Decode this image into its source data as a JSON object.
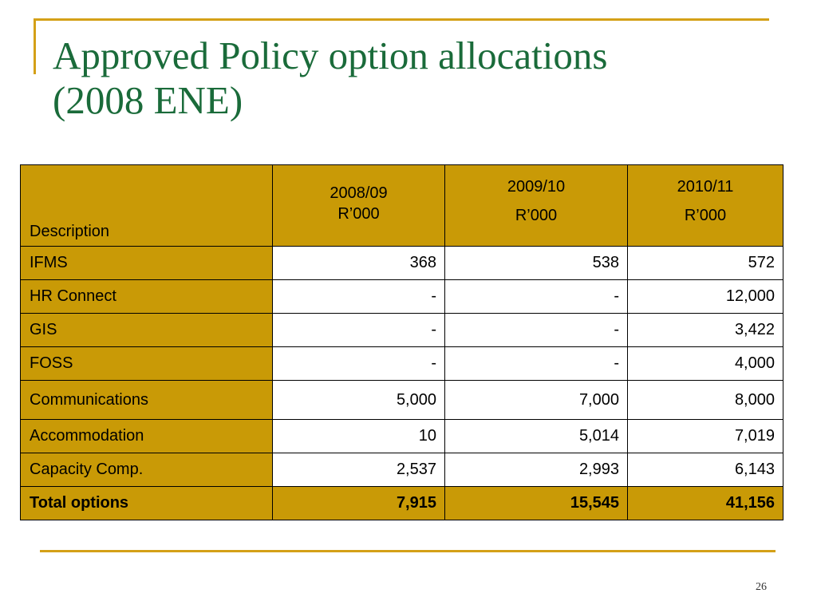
{
  "slide": {
    "title_line1": "Approved Policy option allocations",
    "title_line2": "(2008 ENE)",
    "page_number": "26"
  },
  "table": {
    "header": {
      "description": "Description",
      "col1_year": "2008/09",
      "col1_unit": "R’000",
      "col2_year": "2009/10",
      "col2_unit": "R’000",
      "col3_year": "2010/11",
      "col3_unit": "R’000"
    },
    "rows": [
      {
        "label": "IFMS",
        "v1": "368",
        "v2": "538",
        "v3": "572"
      },
      {
        "label": "HR Connect",
        "v1": "-",
        "v2": "-",
        "v3": "12,000"
      },
      {
        "label": "GIS",
        "v1": "-",
        "v2": "-",
        "v3": "3,422"
      },
      {
        "label": "FOSS",
        "v1": "-",
        "v2": "-",
        "v3": "4,000"
      },
      {
        "label": "Communications",
        "v1": "5,000",
        "v2": "7,000",
        "v3": "8,000"
      },
      {
        "label": "Accommodation",
        "v1": "10",
        "v2": "5,014",
        "v3": "7,019"
      },
      {
        "label": "Capacity Comp.",
        "v1": "2,537",
        "v2": "2,993",
        "v3": "6,143"
      }
    ],
    "total": {
      "label": "Total options",
      "v1": "7,915",
      "v2": "15,545",
      "v3": "41,156"
    }
  },
  "colors": {
    "accent_gold": "#c99a06",
    "frame_gold": "#d4a017",
    "title_green": "#1a6b3a"
  }
}
